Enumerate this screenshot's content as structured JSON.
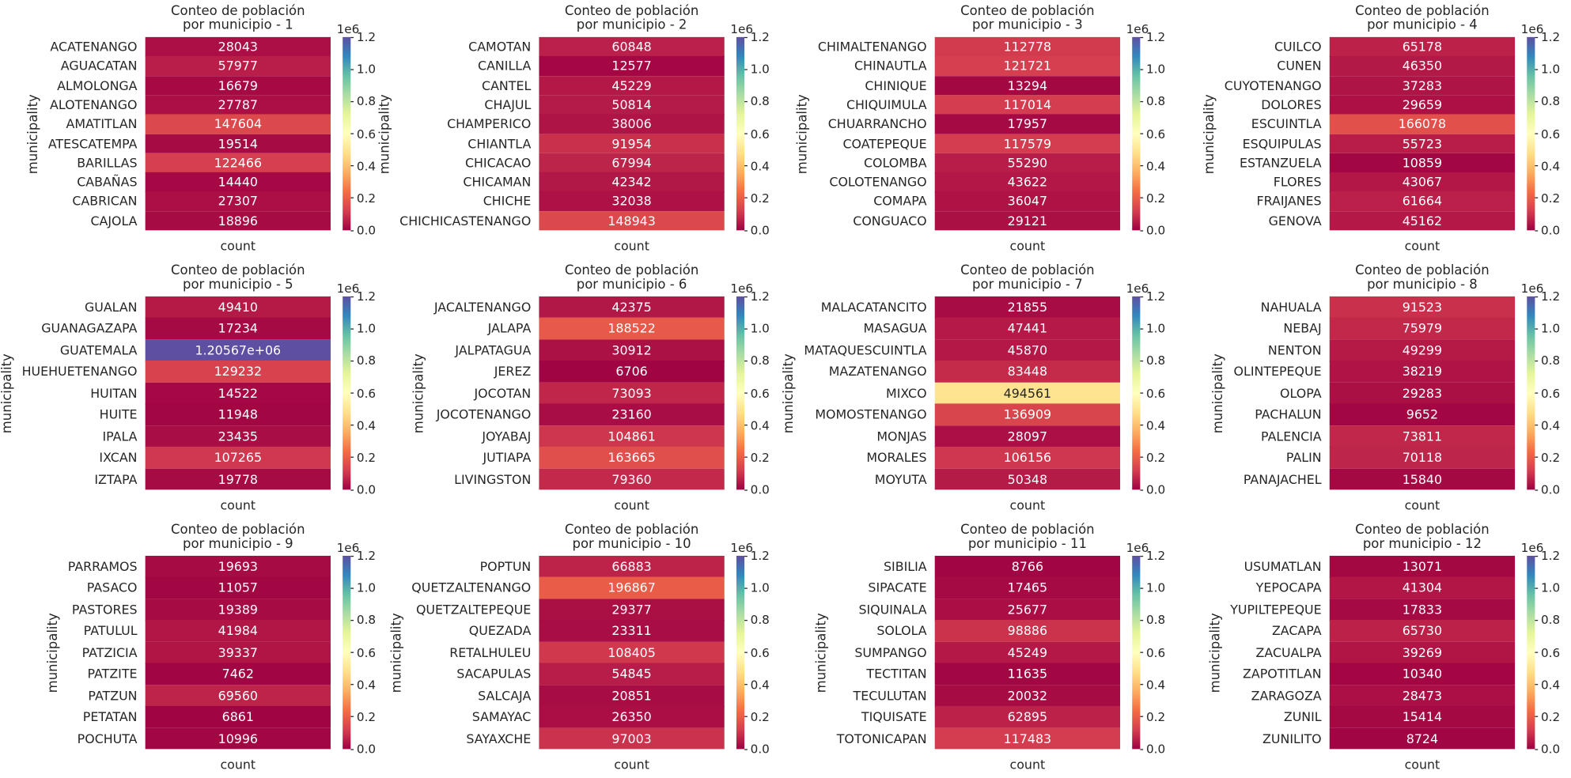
{
  "chart_data": [
    {
      "type": "heatmap",
      "title": "Conteo de población\npor municipio - 1",
      "ylabel": "municipality",
      "x_categories": [
        "count"
      ],
      "categories": [
        "ACATENANGO",
        "AGUACATAN",
        "ALMOLONGA",
        "ALOTENANGO",
        "AMATITLAN",
        "ATESCATEMPA",
        "BARILLAS",
        "CABAÑAS",
        "CABRICAN",
        "CAJOLA"
      ],
      "values": [
        28043,
        57977,
        16679,
        27787,
        147604,
        19514,
        122466,
        14440,
        27307,
        18896
      ],
      "clim": [
        0,
        1200000
      ],
      "cticks": [
        {
          "value": 0,
          "label": "0.0"
        },
        {
          "value": 200000,
          "label": "0.2"
        },
        {
          "value": 400000,
          "label": "0.4"
        },
        {
          "value": 600000,
          "label": "0.6"
        },
        {
          "value": 800000,
          "label": "0.8"
        },
        {
          "value": 1000000,
          "label": "1.0"
        },
        {
          "value": 1200000,
          "label": "1.2"
        }
      ],
      "colorbar_offset": "1e6",
      "colormap": [
        "#9e0142",
        "#d53e4f",
        "#f46d43",
        "#fdae61",
        "#fee08b",
        "#ffffbf",
        "#e6f598",
        "#abdda4",
        "#66c2a5",
        "#3288bd",
        "#5e4fa2"
      ]
    },
    {
      "type": "heatmap",
      "title": "Conteo de población\npor municipio - 2",
      "ylabel": "municipality",
      "x_categories": [
        "count"
      ],
      "categories": [
        "CAMOTAN",
        "CANILLA",
        "CANTEL",
        "CHAJUL",
        "CHAMPERICO",
        "CHIANTLA",
        "CHICACAO",
        "CHICAMAN",
        "CHICHE",
        "CHICHICASTENANGO"
      ],
      "values": [
        60848,
        12577,
        45229,
        50814,
        38006,
        91954,
        67994,
        42342,
        32038,
        148943
      ],
      "clim": [
        0,
        1200000
      ],
      "cticks": [
        {
          "value": 0,
          "label": "0.0"
        },
        {
          "value": 200000,
          "label": "0.2"
        },
        {
          "value": 400000,
          "label": "0.4"
        },
        {
          "value": 600000,
          "label": "0.6"
        },
        {
          "value": 800000,
          "label": "0.8"
        },
        {
          "value": 1000000,
          "label": "1.0"
        },
        {
          "value": 1200000,
          "label": "1.2"
        }
      ],
      "colorbar_offset": "1e6",
      "colormap": [
        "#9e0142",
        "#d53e4f",
        "#f46d43",
        "#fdae61",
        "#fee08b",
        "#ffffbf",
        "#e6f598",
        "#abdda4",
        "#66c2a5",
        "#3288bd",
        "#5e4fa2"
      ]
    },
    {
      "type": "heatmap",
      "title": "Conteo de población\npor municipio - 3",
      "ylabel": "municipality",
      "x_categories": [
        "count"
      ],
      "categories": [
        "CHIMALTENANGO",
        "CHINAUTLA",
        "CHINIQUE",
        "CHIQUIMULA",
        "CHUARRANCHO",
        "COATEPEQUE",
        "COLOMBA",
        "COLOTENANGO",
        "COMAPA",
        "CONGUACO"
      ],
      "values": [
        112778,
        121721,
        13294,
        117014,
        17957,
        117579,
        55290,
        43622,
        36047,
        29121
      ],
      "clim": [
        0,
        1200000
      ],
      "cticks": [
        {
          "value": 0,
          "label": "0.0"
        },
        {
          "value": 200000,
          "label": "0.2"
        },
        {
          "value": 400000,
          "label": "0.4"
        },
        {
          "value": 600000,
          "label": "0.6"
        },
        {
          "value": 800000,
          "label": "0.8"
        },
        {
          "value": 1000000,
          "label": "1.0"
        },
        {
          "value": 1200000,
          "label": "1.2"
        }
      ],
      "colorbar_offset": "1e6",
      "colormap": [
        "#9e0142",
        "#d53e4f",
        "#f46d43",
        "#fdae61",
        "#fee08b",
        "#ffffbf",
        "#e6f598",
        "#abdda4",
        "#66c2a5",
        "#3288bd",
        "#5e4fa2"
      ]
    },
    {
      "type": "heatmap",
      "title": "Conteo de población\npor municipio - 4",
      "ylabel": "municipality",
      "x_categories": [
        "count"
      ],
      "categories": [
        "CUILCO",
        "CUNEN",
        "CUYOTENANGO",
        "DOLORES",
        "ESCUINTLA",
        "ESQUIPULAS",
        "ESTANZUELA",
        "FLORES",
        "FRAIJANES",
        "GENOVA"
      ],
      "values": [
        65178,
        46350,
        37283,
        29659,
        166078,
        55723,
        10859,
        43067,
        61664,
        45162
      ],
      "clim": [
        0,
        1200000
      ],
      "cticks": [
        {
          "value": 0,
          "label": "0.0"
        },
        {
          "value": 200000,
          "label": "0.2"
        },
        {
          "value": 400000,
          "label": "0.4"
        },
        {
          "value": 600000,
          "label": "0.6"
        },
        {
          "value": 800000,
          "label": "0.8"
        },
        {
          "value": 1000000,
          "label": "1.0"
        },
        {
          "value": 1200000,
          "label": "1.2"
        }
      ],
      "colorbar_offset": "1e6",
      "colormap": [
        "#9e0142",
        "#d53e4f",
        "#f46d43",
        "#fdae61",
        "#fee08b",
        "#ffffbf",
        "#e6f598",
        "#abdda4",
        "#66c2a5",
        "#3288bd",
        "#5e4fa2"
      ]
    },
    {
      "type": "heatmap",
      "title": "Conteo de población\npor municipio - 5",
      "ylabel": "municipality",
      "x_categories": [
        "count"
      ],
      "categories": [
        "GUALAN",
        "GUANAGAZAPA",
        "GUATEMALA",
        "HUEHUETENANGO",
        "HUITAN",
        "HUITE",
        "IPALA",
        "IXCAN",
        "IZTAPA"
      ],
      "values": [
        49410,
        17234,
        1205670,
        129232,
        14522,
        11948,
        23435,
        107265,
        19778
      ],
      "value_labels": [
        "49410",
        "17234",
        "1.20567e+06",
        "129232",
        "14522",
        "11948",
        "23435",
        "107265",
        "19778"
      ],
      "clim": [
        0,
        1200000
      ],
      "cticks": [
        {
          "value": 0,
          "label": "0.0"
        },
        {
          "value": 200000,
          "label": "0.2"
        },
        {
          "value": 400000,
          "label": "0.4"
        },
        {
          "value": 600000,
          "label": "0.6"
        },
        {
          "value": 800000,
          "label": "0.8"
        },
        {
          "value": 1000000,
          "label": "1.0"
        },
        {
          "value": 1200000,
          "label": "1.2"
        }
      ],
      "colorbar_offset": "1e6",
      "colormap": [
        "#9e0142",
        "#d53e4f",
        "#f46d43",
        "#fdae61",
        "#fee08b",
        "#ffffbf",
        "#e6f598",
        "#abdda4",
        "#66c2a5",
        "#3288bd",
        "#5e4fa2"
      ]
    },
    {
      "type": "heatmap",
      "title": "Conteo de población\npor municipio - 6",
      "ylabel": "municipality",
      "x_categories": [
        "count"
      ],
      "categories": [
        "JACALTENANGO",
        "JALAPA",
        "JALPATAGUA",
        "JEREZ",
        "JOCOTAN",
        "JOCOTENANGO",
        "JOYABAJ",
        "JUTIAPA",
        "LIVINGSTON"
      ],
      "values": [
        42375,
        188522,
        30912,
        6706,
        73093,
        23160,
        104861,
        163665,
        79360
      ],
      "clim": [
        0,
        1200000
      ],
      "cticks": [
        {
          "value": 0,
          "label": "0.0"
        },
        {
          "value": 200000,
          "label": "0.2"
        },
        {
          "value": 400000,
          "label": "0.4"
        },
        {
          "value": 600000,
          "label": "0.6"
        },
        {
          "value": 800000,
          "label": "0.8"
        },
        {
          "value": 1000000,
          "label": "1.0"
        },
        {
          "value": 1200000,
          "label": "1.2"
        }
      ],
      "colorbar_offset": "1e6",
      "colormap": [
        "#9e0142",
        "#d53e4f",
        "#f46d43",
        "#fdae61",
        "#fee08b",
        "#ffffbf",
        "#e6f598",
        "#abdda4",
        "#66c2a5",
        "#3288bd",
        "#5e4fa2"
      ]
    },
    {
      "type": "heatmap",
      "title": "Conteo de población\npor municipio - 7",
      "ylabel": "municipality",
      "x_categories": [
        "count"
      ],
      "categories": [
        "MALACATANCITO",
        "MASAGUA",
        "MATAQUESCUINTLA",
        "MAZATENANGO",
        "MIXCO",
        "MOMOSTENANGO",
        "MONJAS",
        "MORALES",
        "MOYUTA"
      ],
      "values": [
        21855,
        47441,
        45870,
        83448,
        494561,
        136909,
        28097,
        106156,
        50348
      ],
      "clim": [
        0,
        1200000
      ],
      "cticks": [
        {
          "value": 0,
          "label": "0.0"
        },
        {
          "value": 200000,
          "label": "0.2"
        },
        {
          "value": 400000,
          "label": "0.4"
        },
        {
          "value": 600000,
          "label": "0.6"
        },
        {
          "value": 800000,
          "label": "0.8"
        },
        {
          "value": 1000000,
          "label": "1.0"
        },
        {
          "value": 1200000,
          "label": "1.2"
        }
      ],
      "colorbar_offset": "1e6",
      "colormap": [
        "#9e0142",
        "#d53e4f",
        "#f46d43",
        "#fdae61",
        "#fee08b",
        "#ffffbf",
        "#e6f598",
        "#abdda4",
        "#66c2a5",
        "#3288bd",
        "#5e4fa2"
      ]
    },
    {
      "type": "heatmap",
      "title": "Conteo de población\npor municipio - 8",
      "ylabel": "municipality",
      "x_categories": [
        "count"
      ],
      "categories": [
        "NAHUALA",
        "NEBAJ",
        "NENTON",
        "OLINTEPEQUE",
        "OLOPA",
        "PACHALUN",
        "PALENCIA",
        "PALIN",
        "PANAJACHEL"
      ],
      "values": [
        91523,
        75979,
        49299,
        38219,
        29283,
        9652,
        73811,
        70118,
        15840
      ],
      "clim": [
        0,
        1200000
      ],
      "cticks": [
        {
          "value": 0,
          "label": "0.0"
        },
        {
          "value": 200000,
          "label": "0.2"
        },
        {
          "value": 400000,
          "label": "0.4"
        },
        {
          "value": 600000,
          "label": "0.6"
        },
        {
          "value": 800000,
          "label": "0.8"
        },
        {
          "value": 1000000,
          "label": "1.0"
        },
        {
          "value": 1200000,
          "label": "1.2"
        }
      ],
      "colorbar_offset": "1e6",
      "colormap": [
        "#9e0142",
        "#d53e4f",
        "#f46d43",
        "#fdae61",
        "#fee08b",
        "#ffffbf",
        "#e6f598",
        "#abdda4",
        "#66c2a5",
        "#3288bd",
        "#5e4fa2"
      ]
    },
    {
      "type": "heatmap",
      "title": "Conteo de población\npor municipio - 9",
      "ylabel": "municipality",
      "x_categories": [
        "count"
      ],
      "categories": [
        "PARRAMOS",
        "PASACO",
        "PASTORES",
        "PATULUL",
        "PATZICIA",
        "PATZITE",
        "PATZUN",
        "PETATAN",
        "POCHUTA"
      ],
      "values": [
        19693,
        11057,
        19389,
        41984,
        39337,
        7462,
        69560,
        6861,
        10996
      ],
      "clim": [
        0,
        1200000
      ],
      "cticks": [
        {
          "value": 0,
          "label": "0.0"
        },
        {
          "value": 200000,
          "label": "0.2"
        },
        {
          "value": 400000,
          "label": "0.4"
        },
        {
          "value": 600000,
          "label": "0.6"
        },
        {
          "value": 800000,
          "label": "0.8"
        },
        {
          "value": 1000000,
          "label": "1.0"
        },
        {
          "value": 1200000,
          "label": "1.2"
        }
      ],
      "colorbar_offset": "1e6",
      "colormap": [
        "#9e0142",
        "#d53e4f",
        "#f46d43",
        "#fdae61",
        "#fee08b",
        "#ffffbf",
        "#e6f598",
        "#abdda4",
        "#66c2a5",
        "#3288bd",
        "#5e4fa2"
      ]
    },
    {
      "type": "heatmap",
      "title": "Conteo de población\npor municipio - 10",
      "ylabel": "municipality",
      "x_categories": [
        "count"
      ],
      "categories": [
        "POPTUN",
        "QUETZALTENANGO",
        "QUETZALTEPEQUE",
        "QUEZADA",
        "RETALHULEU",
        "SACAPULAS",
        "SALCAJA",
        "SAMAYAC",
        "SAYAXCHE"
      ],
      "values": [
        66883,
        196867,
        29377,
        23311,
        108405,
        54845,
        20851,
        26350,
        97003
      ],
      "clim": [
        0,
        1200000
      ],
      "cticks": [
        {
          "value": 0,
          "label": "0.0"
        },
        {
          "value": 200000,
          "label": "0.2"
        },
        {
          "value": 400000,
          "label": "0.4"
        },
        {
          "value": 600000,
          "label": "0.6"
        },
        {
          "value": 800000,
          "label": "0.8"
        },
        {
          "value": 1000000,
          "label": "1.0"
        },
        {
          "value": 1200000,
          "label": "1.2"
        }
      ],
      "colorbar_offset": "1e6",
      "colormap": [
        "#9e0142",
        "#d53e4f",
        "#f46d43",
        "#fdae61",
        "#fee08b",
        "#ffffbf",
        "#e6f598",
        "#abdda4",
        "#66c2a5",
        "#3288bd",
        "#5e4fa2"
      ]
    },
    {
      "type": "heatmap",
      "title": "Conteo de población\npor municipio - 11",
      "ylabel": "municipality",
      "x_categories": [
        "count"
      ],
      "categories": [
        "SIBILIA",
        "SIPACATE",
        "SIQUINALA",
        "SOLOLA",
        "SUMPANGO",
        "TECTITAN",
        "TECULUTAN",
        "TIQUISATE",
        "TOTONICAPAN"
      ],
      "values": [
        8766,
        17465,
        25677,
        98886,
        45249,
        11635,
        20032,
        62895,
        117483
      ],
      "clim": [
        0,
        1200000
      ],
      "cticks": [
        {
          "value": 0,
          "label": "0.0"
        },
        {
          "value": 200000,
          "label": "0.2"
        },
        {
          "value": 400000,
          "label": "0.4"
        },
        {
          "value": 600000,
          "label": "0.6"
        },
        {
          "value": 800000,
          "label": "0.8"
        },
        {
          "value": 1000000,
          "label": "1.0"
        },
        {
          "value": 1200000,
          "label": "1.2"
        }
      ],
      "colorbar_offset": "1e6",
      "colormap": [
        "#9e0142",
        "#d53e4f",
        "#f46d43",
        "#fdae61",
        "#fee08b",
        "#ffffbf",
        "#e6f598",
        "#abdda4",
        "#66c2a5",
        "#3288bd",
        "#5e4fa2"
      ]
    },
    {
      "type": "heatmap",
      "title": "Conteo de población\npor municipio - 12",
      "ylabel": "municipality",
      "x_categories": [
        "count"
      ],
      "categories": [
        "USUMATLAN",
        "YEPOCAPA",
        "YUPILTEPEQUE",
        "ZACAPA",
        "ZACUALPA",
        "ZAPOTITLAN",
        "ZARAGOZA",
        "ZUNIL",
        "ZUNILITO"
      ],
      "values": [
        13071,
        41304,
        17833,
        65730,
        39269,
        10340,
        28473,
        15414,
        8724
      ],
      "clim": [
        0,
        1200000
      ],
      "cticks": [
        {
          "value": 0,
          "label": "0.0"
        },
        {
          "value": 200000,
          "label": "0.2"
        },
        {
          "value": 400000,
          "label": "0.4"
        },
        {
          "value": 600000,
          "label": "0.6"
        },
        {
          "value": 800000,
          "label": "0.8"
        },
        {
          "value": 1000000,
          "label": "1.0"
        },
        {
          "value": 1200000,
          "label": "1.2"
        }
      ],
      "colorbar_offset": "1e6",
      "colormap": [
        "#9e0142",
        "#d53e4f",
        "#f46d43",
        "#fdae61",
        "#fee08b",
        "#ffffbf",
        "#e6f598",
        "#abdda4",
        "#66c2a5",
        "#3288bd",
        "#5e4fa2"
      ]
    }
  ]
}
